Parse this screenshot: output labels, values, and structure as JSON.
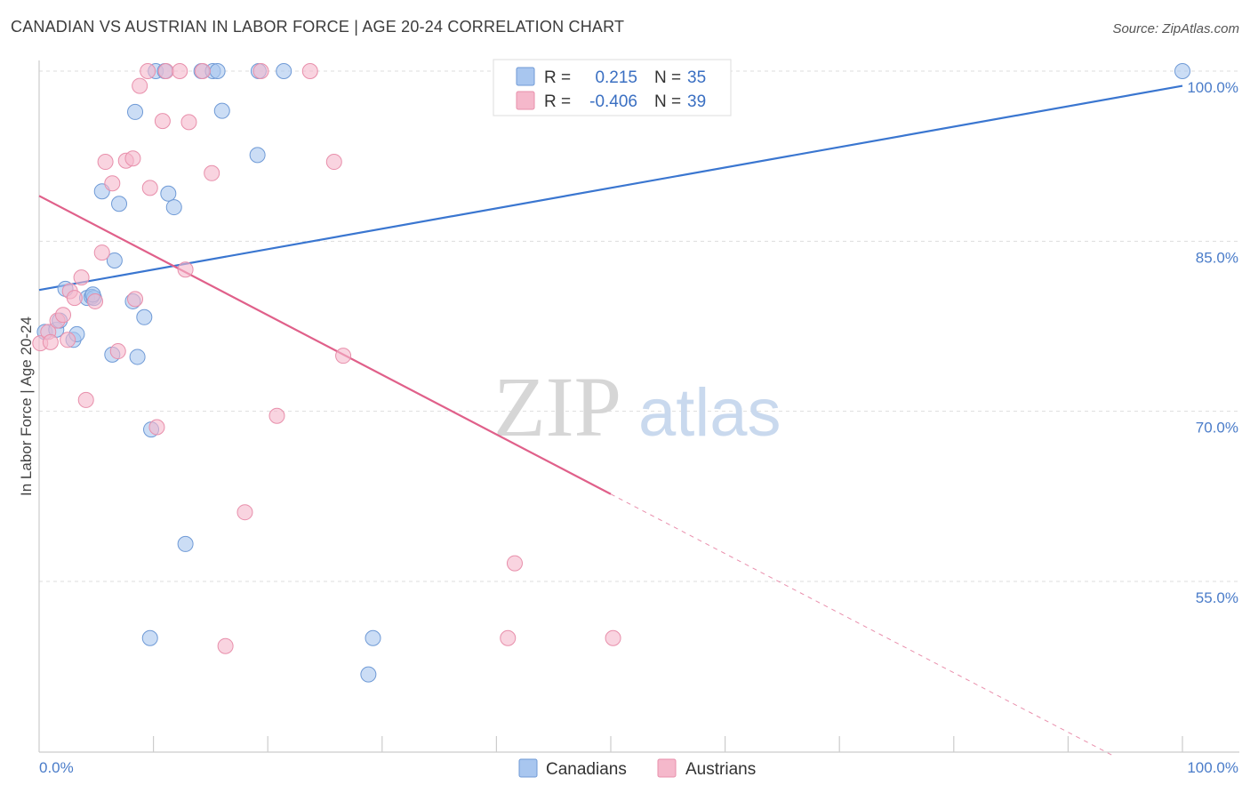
{
  "header": {
    "title": "CANADIAN VS AUSTRIAN IN LABOR FORCE | AGE 20-24 CORRELATION CHART",
    "source": "Source: ZipAtlas.com"
  },
  "watermark": {
    "zip": "ZIP",
    "atlas": "atlas"
  },
  "legend_top": {
    "rows": [
      {
        "r_label": "R =",
        "r_value": "0.215",
        "n_label": "N =",
        "n_value": "35",
        "color": "#a8c6ef"
      },
      {
        "r_label": "R =",
        "r_value": "-0.406",
        "n_label": "N =",
        "n_value": "39",
        "color": "#f5b8cb"
      }
    ]
  },
  "legend_bottom": {
    "items": [
      "Canadians",
      "Austrians"
    ]
  },
  "chart_data": {
    "type": "scatter",
    "title": "CANADIAN VS AUSTRIAN IN LABOR FORCE | AGE 20-24 CORRELATION CHART",
    "xlabel": "",
    "ylabel": "In Labor Force | Age 20-24",
    "xlim": [
      0,
      100
    ],
    "ylim": [
      40,
      102
    ],
    "x_tick_labels": [
      "0.0%",
      "100.0%"
    ],
    "y_ticks": [
      55,
      70,
      85,
      100
    ],
    "y_tick_labels": [
      "55.0%",
      "70.0%",
      "85.0%",
      "100.0%"
    ],
    "grid": true,
    "legend_position": "top-center",
    "series": [
      {
        "name": "Canadians",
        "color": "#a8c6ef",
        "edge": "#6f9ad6",
        "line_color": "#3a76d0",
        "points": [
          [
            0.5,
            77.0
          ],
          [
            1.5,
            77.2
          ],
          [
            1.8,
            78.0
          ],
          [
            2.3,
            80.8
          ],
          [
            3.0,
            76.3
          ],
          [
            3.3,
            76.8
          ],
          [
            4.2,
            80.0
          ],
          [
            4.6,
            80.1
          ],
          [
            4.8,
            80.0
          ],
          [
            4.7,
            80.3
          ],
          [
            6.6,
            83.3
          ],
          [
            5.5,
            89.4
          ],
          [
            7.0,
            88.3
          ],
          [
            6.4,
            75.0
          ],
          [
            8.2,
            79.7
          ],
          [
            9.2,
            78.3
          ],
          [
            8.6,
            74.8
          ],
          [
            9.8,
            68.4
          ],
          [
            8.4,
            96.4
          ],
          [
            9.7,
            50.0
          ],
          [
            10.2,
            100.0
          ],
          [
            11.0,
            100.0
          ],
          [
            11.3,
            89.2
          ],
          [
            11.8,
            88.0
          ],
          [
            12.8,
            58.3
          ],
          [
            14.2,
            100.0
          ],
          [
            15.2,
            100.0
          ],
          [
            15.6,
            100.0
          ],
          [
            16.0,
            96.5
          ],
          [
            19.1,
            92.6
          ],
          [
            19.2,
            100.0
          ],
          [
            21.4,
            100.0
          ],
          [
            28.8,
            46.8
          ],
          [
            29.2,
            50.0
          ],
          [
            100.0,
            100.0
          ]
        ],
        "trend": {
          "x": [
            0,
            100
          ],
          "y": [
            80.7,
            98.7
          ]
        }
      },
      {
        "name": "Austrians",
        "color": "#f5b8cb",
        "edge": "#e88fab",
        "line_color": "#e0608a",
        "points": [
          [
            0.1,
            76.0
          ],
          [
            0.8,
            77.0
          ],
          [
            1.0,
            76.1
          ],
          [
            1.6,
            78.0
          ],
          [
            2.1,
            78.5
          ],
          [
            2.7,
            80.6
          ],
          [
            3.1,
            80.0
          ],
          [
            3.7,
            81.8
          ],
          [
            4.1,
            71.0
          ],
          [
            4.9,
            79.7
          ],
          [
            5.5,
            84.0
          ],
          [
            5.8,
            92.0
          ],
          [
            6.4,
            90.1
          ],
          [
            6.9,
            75.3
          ],
          [
            7.6,
            92.1
          ],
          [
            8.2,
            92.3
          ],
          [
            8.4,
            79.9
          ],
          [
            8.8,
            98.7
          ],
          [
            9.5,
            100.0
          ],
          [
            9.7,
            89.7
          ],
          [
            10.3,
            68.6
          ],
          [
            10.8,
            95.6
          ],
          [
            11.1,
            100.0
          ],
          [
            12.3,
            100.0
          ],
          [
            12.8,
            82.5
          ],
          [
            13.1,
            95.5
          ],
          [
            14.3,
            100.0
          ],
          [
            15.1,
            91.0
          ],
          [
            16.3,
            49.3
          ],
          [
            18.0,
            61.1
          ],
          [
            19.4,
            100.0
          ],
          [
            20.8,
            69.6
          ],
          [
            23.7,
            100.0
          ],
          [
            25.8,
            92.0
          ],
          [
            26.6,
            74.9
          ],
          [
            41.0,
            50.0
          ],
          [
            41.6,
            56.6
          ],
          [
            50.2,
            50.0
          ],
          [
            2.5,
            76.3
          ]
        ],
        "trend": {
          "x": [
            0,
            50
          ],
          "y": [
            89.0,
            62.7
          ]
        },
        "trend_dashed": {
          "x": [
            50,
            94
          ],
          "y": [
            62.7,
            39.6
          ]
        }
      }
    ]
  }
}
